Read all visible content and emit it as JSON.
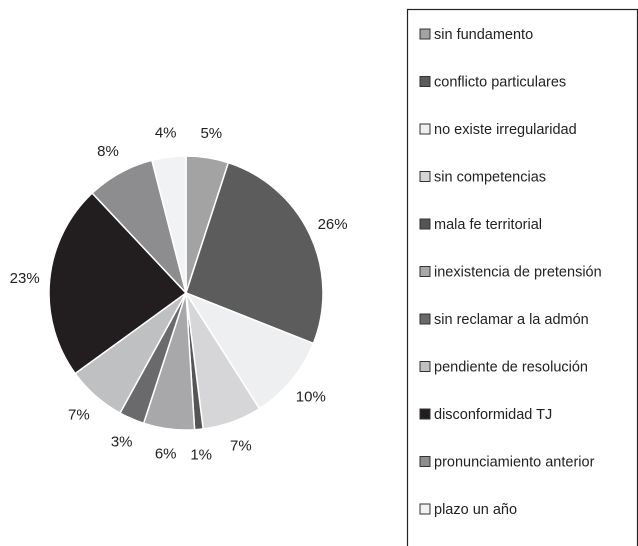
{
  "chart_data": {
    "type": "pie",
    "legend_position": "right",
    "slices": [
      {
        "label": "sin fundamento",
        "value": 5,
        "value_label": "5%",
        "color": "#a3a3a3"
      },
      {
        "label": "conflicto particulares",
        "value": 26,
        "value_label": "26%",
        "color": "#5c5c5c"
      },
      {
        "label": "no existe irregularidad",
        "value": 10,
        "value_label": "10%",
        "color": "#eeeff1"
      },
      {
        "label": "sin competencias",
        "value": 7,
        "value_label": "7%",
        "color": "#d6d6d8"
      },
      {
        "label": "mala fe territorial",
        "value": 1,
        "value_label": "1%",
        "color": "#555555"
      },
      {
        "label": "inexistencia de pretensión",
        "value": 6,
        "value_label": "6%",
        "color": "#a8a8aa"
      },
      {
        "label": "sin reclamar a la admón",
        "value": 3,
        "value_label": "3%",
        "color": "#6a6a6c"
      },
      {
        "label": "pendiente de resolución",
        "value": 7,
        "value_label": "7%",
        "color": "#bfc0c2"
      },
      {
        "label": "disconformidad TJ",
        "value": 23,
        "value_label": "23%",
        "color": "#221e1f"
      },
      {
        "label": "pronunciamiento anterior",
        "value": 8,
        "value_label": "8%",
        "color": "#8d8d8f"
      },
      {
        "label": "plazo un año",
        "value": 4,
        "value_label": "4%",
        "color": "#f1f2f3"
      }
    ]
  }
}
